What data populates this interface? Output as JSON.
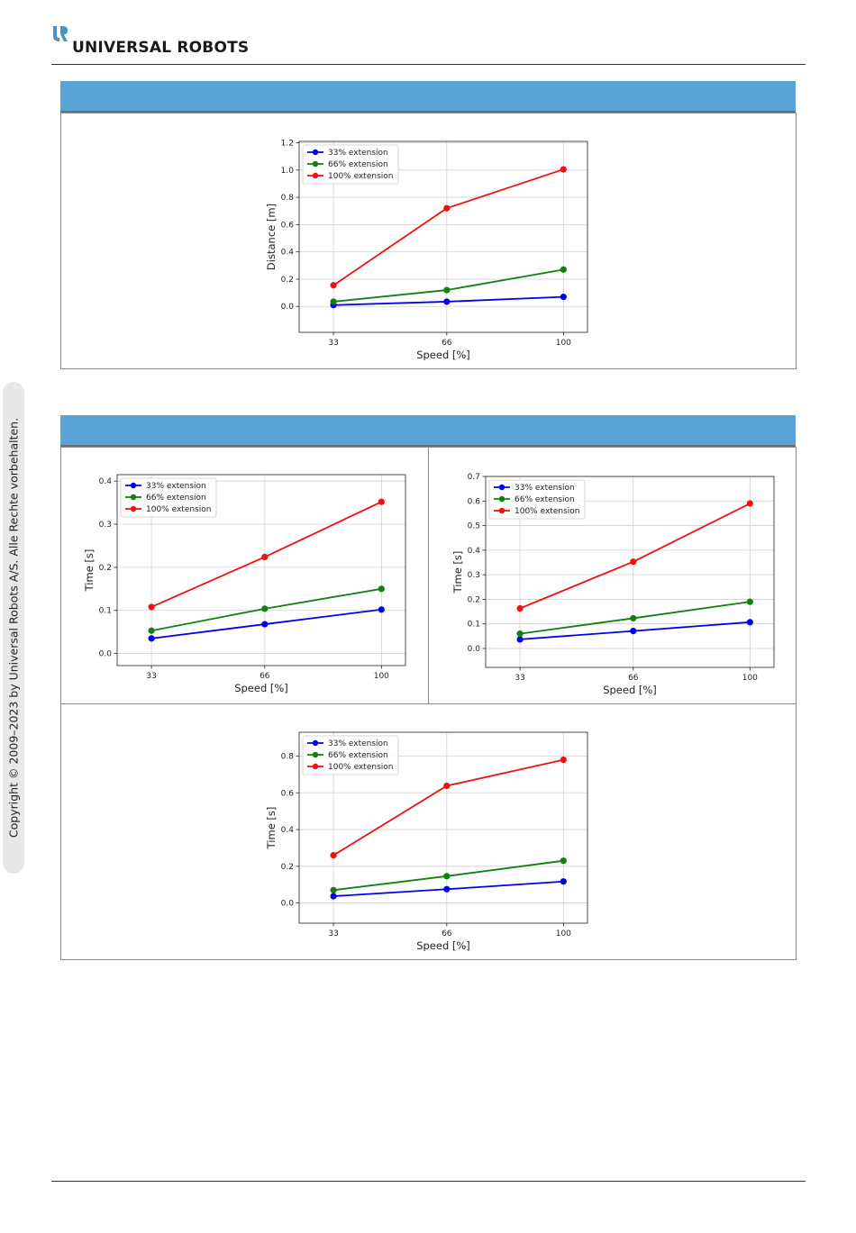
{
  "header": {
    "brand": "UNIVERSAL ROBOTS",
    "logo_icon": "ur-logo-icon",
    "logo_color": "#4a90c2"
  },
  "sidebar": {
    "copyright": "Copyright © 2009–2023 by Universal Robots A/S. Alle Rechte vorbehalten."
  },
  "colors": {
    "band": "#5aa3d6",
    "series": [
      "#0000ee",
      "#108010",
      "#ee1111"
    ]
  },
  "chart_data": [
    {
      "type": "line",
      "x": [
        33,
        66,
        100
      ],
      "xlabel": "Speed [%]",
      "ylabel": "Distance [m]",
      "ylim": [
        -0.19,
        1.21
      ],
      "yticks": [
        0.0,
        0.2,
        0.4,
        0.6,
        0.8,
        1.0,
        1.2
      ],
      "ytick_labels": [
        "0.0",
        "0.2",
        "0.4",
        "0.6",
        "0.8",
        "1.0",
        "1.2"
      ],
      "grid": true,
      "legend": "top-left",
      "series": [
        {
          "name": "33% extension",
          "values": [
            0.01,
            0.035,
            0.07
          ]
        },
        {
          "name": "66% extension",
          "values": [
            0.035,
            0.12,
            0.27
          ]
        },
        {
          "name": "100% extension",
          "values": [
            0.155,
            0.72,
            1.005
          ]
        }
      ]
    },
    {
      "type": "line",
      "x": [
        33,
        66,
        100
      ],
      "xlabel": "Speed [%]",
      "ylabel": "Time [s]",
      "ylim": [
        -0.028,
        0.415
      ],
      "yticks": [
        0.0,
        0.1,
        0.2,
        0.3,
        0.4
      ],
      "ytick_labels": [
        "0.0",
        "0.1",
        "0.2",
        "0.3",
        "0.4"
      ],
      "grid": true,
      "legend": "top-left",
      "series": [
        {
          "name": "33% extension",
          "values": [
            0.035,
            0.068,
            0.102
          ]
        },
        {
          "name": "66% extension",
          "values": [
            0.053,
            0.104,
            0.15
          ]
        },
        {
          "name": "100% extension",
          "values": [
            0.108,
            0.224,
            0.352
          ]
        }
      ]
    },
    {
      "type": "line",
      "x": [
        33,
        66,
        100
      ],
      "xlabel": "Speed [%]",
      "ylabel": "Time [s]",
      "ylim": [
        -0.077,
        0.7
      ],
      "yticks": [
        0.0,
        0.1,
        0.2,
        0.3,
        0.4,
        0.5,
        0.6,
        0.7
      ],
      "ytick_labels": [
        "0.0",
        "0.1",
        "0.2",
        "0.3",
        "0.4",
        "0.5",
        "0.6",
        "0.7"
      ],
      "grid": true,
      "legend": "top-left",
      "series": [
        {
          "name": "33% extension",
          "values": [
            0.037,
            0.071,
            0.107
          ]
        },
        {
          "name": "66% extension",
          "values": [
            0.06,
            0.123,
            0.19
          ]
        },
        {
          "name": "100% extension",
          "values": [
            0.163,
            0.353,
            0.59
          ]
        }
      ]
    },
    {
      "type": "line",
      "x": [
        33,
        66,
        100
      ],
      "xlabel": "Speed [%]",
      "ylabel": "Time [s]",
      "ylim": [
        -0.11,
        0.93
      ],
      "yticks": [
        0.0,
        0.2,
        0.4,
        0.6,
        0.8
      ],
      "ytick_labels": [
        "0.0",
        "0.2",
        "0.4",
        "0.6",
        "0.8"
      ],
      "grid": true,
      "legend": "top-left",
      "series": [
        {
          "name": "33% extension",
          "values": [
            0.037,
            0.075,
            0.117
          ]
        },
        {
          "name": "66% extension",
          "values": [
            0.07,
            0.146,
            0.23
          ]
        },
        {
          "name": "100% extension",
          "values": [
            0.26,
            0.638,
            0.78
          ]
        }
      ]
    }
  ]
}
